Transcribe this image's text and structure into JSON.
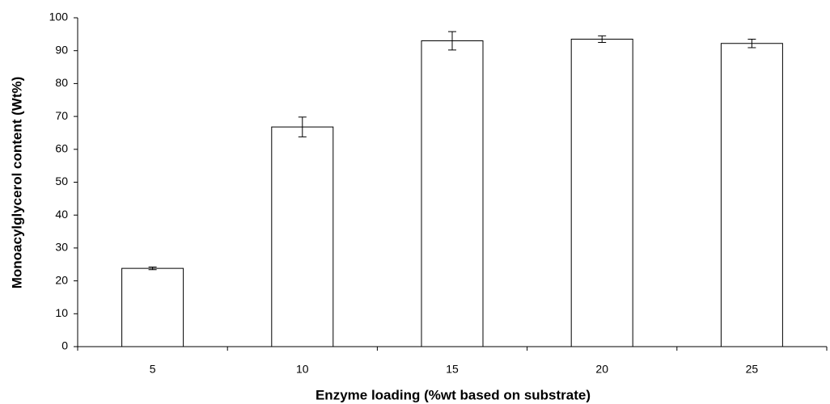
{
  "chart_data": {
    "type": "bar",
    "categories": [
      "5",
      "10",
      "15",
      "20",
      "25"
    ],
    "values": [
      23.8,
      66.8,
      93.0,
      93.5,
      92.2
    ],
    "errors": [
      0.4,
      3.0,
      2.8,
      1.0,
      1.3
    ],
    "color": "#ffffff",
    "x_label": "Enzyme loading (%wt based on substrate)",
    "y_label": "Monoacylglycerol content (Wt%)",
    "ylim": [
      0,
      100
    ],
    "yticks": [
      0,
      10,
      20,
      30,
      40,
      50,
      60,
      70,
      80,
      90,
      100
    ]
  }
}
